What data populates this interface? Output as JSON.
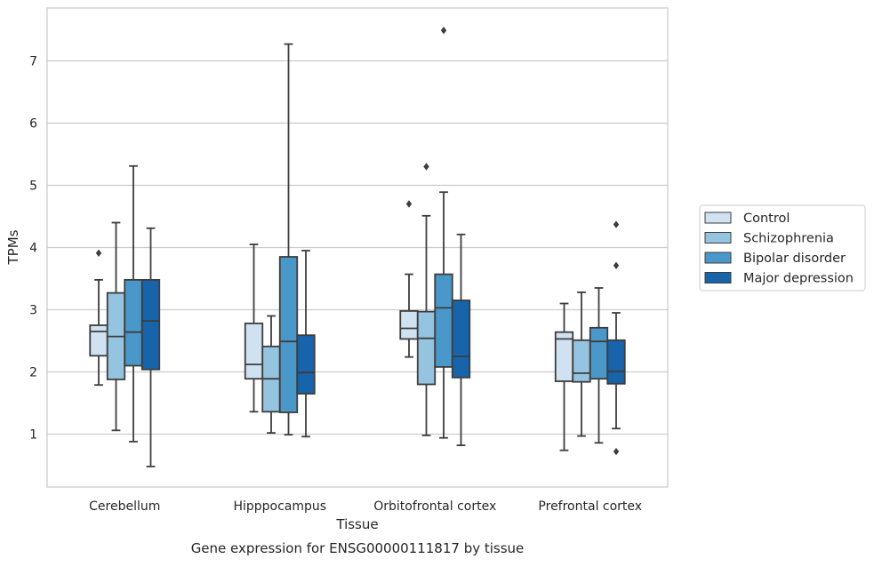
{
  "chart_data": {
    "type": "boxplot",
    "title": "",
    "caption": "Gene expression for ENSG00000111817 by tissue",
    "xlabel": "Tissue",
    "ylabel": "TPMs",
    "ylim": [
      0.15,
      7.85
    ],
    "yticks": [
      1,
      2,
      3,
      4,
      5,
      6,
      7
    ],
    "grid": true,
    "legend_position": "right",
    "categories": [
      "Cerebellum",
      "Hipppocampus",
      "Orbitofrontal cortex",
      "Prefrontal cortex"
    ],
    "series": [
      {
        "name": "Control",
        "color": "#d0e1f2",
        "boxes": [
          {
            "whislo": 1.79,
            "q1": 2.26,
            "med": 2.65,
            "q3": 2.75,
            "whishi": 3.48,
            "fliers": [
              3.91
            ]
          },
          {
            "whislo": 1.36,
            "q1": 1.89,
            "med": 2.12,
            "q3": 2.78,
            "whishi": 4.05,
            "fliers": []
          },
          {
            "whislo": 2.24,
            "q1": 2.53,
            "med": 2.7,
            "q3": 2.98,
            "whishi": 3.57,
            "fliers": [
              4.7
            ]
          },
          {
            "whislo": 0.74,
            "q1": 1.85,
            "med": 2.53,
            "q3": 2.64,
            "whishi": 3.1,
            "fliers": []
          }
        ]
      },
      {
        "name": "Schizophrenia",
        "color": "#94c4df",
        "boxes": [
          {
            "whislo": 1.06,
            "q1": 1.88,
            "med": 2.57,
            "q3": 3.27,
            "whishi": 4.4,
            "fliers": []
          },
          {
            "whislo": 1.02,
            "q1": 1.36,
            "med": 1.89,
            "q3": 2.41,
            "whishi": 2.9,
            "fliers": []
          },
          {
            "whislo": 0.98,
            "q1": 1.8,
            "med": 2.54,
            "q3": 2.97,
            "whishi": 4.51,
            "fliers": [
              5.3
            ]
          },
          {
            "whislo": 0.97,
            "q1": 1.84,
            "med": 1.98,
            "q3": 2.51,
            "whishi": 3.28,
            "fliers": []
          }
        ]
      },
      {
        "name": "Bipolar disorder",
        "color": "#4a98c9",
        "boxes": [
          {
            "whislo": 0.88,
            "q1": 2.1,
            "med": 2.64,
            "q3": 3.48,
            "whishi": 5.31,
            "fliers": []
          },
          {
            "whislo": 0.99,
            "q1": 1.35,
            "med": 2.49,
            "q3": 3.85,
            "whishi": 7.27,
            "fliers": []
          },
          {
            "whislo": 0.94,
            "q1": 2.08,
            "med": 3.03,
            "q3": 3.57,
            "whishi": 4.89,
            "fliers": [
              7.49
            ]
          },
          {
            "whislo": 0.86,
            "q1": 1.89,
            "med": 2.49,
            "q3": 2.71,
            "whishi": 3.35,
            "fliers": []
          }
        ]
      },
      {
        "name": "Major depression",
        "color": "#1764ab",
        "boxes": [
          {
            "whislo": 0.48,
            "q1": 2.04,
            "med": 2.82,
            "q3": 3.48,
            "whishi": 4.31,
            "fliers": []
          },
          {
            "whislo": 0.96,
            "q1": 1.65,
            "med": 1.99,
            "q3": 2.59,
            "whishi": 3.95,
            "fliers": []
          },
          {
            "whislo": 0.82,
            "q1": 1.91,
            "med": 2.25,
            "q3": 3.15,
            "whishi": 4.21,
            "fliers": []
          },
          {
            "whislo": 1.09,
            "q1": 1.81,
            "med": 2.01,
            "q3": 2.51,
            "whishi": 2.95,
            "fliers": [
              0.72,
              3.71,
              4.37
            ]
          }
        ]
      }
    ]
  }
}
